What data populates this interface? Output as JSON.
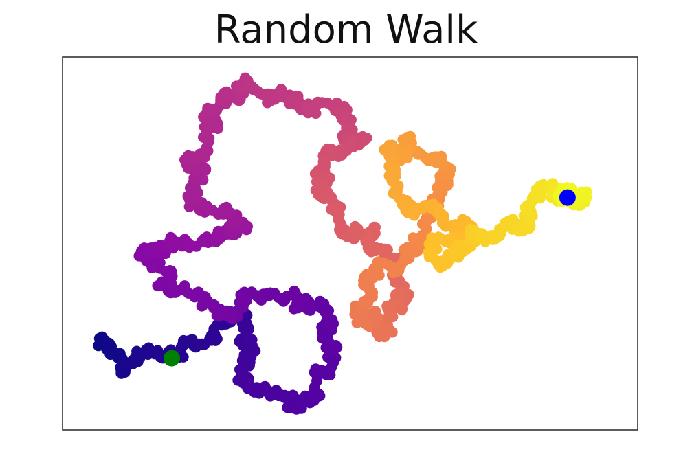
{
  "chart_data": {
    "type": "scatter",
    "title": "Random Walk",
    "xlabel": "",
    "ylabel": "",
    "axes_visible": false,
    "colormap": "plasma",
    "xlim": [
      0,
      100
    ],
    "ylim": [
      0,
      65
    ],
    "start_point": {
      "x": 19,
      "y": 12.5,
      "color": "#008000"
    },
    "end_point": {
      "x": 87.8,
      "y": 40.5,
      "color": "#0000ff"
    },
    "path_waypoints": [
      {
        "x": 6,
        "y": 15
      },
      {
        "x": 12,
        "y": 11
      },
      {
        "x": 22,
        "y": 14
      },
      {
        "x": 32,
        "y": 20
      },
      {
        "x": 31,
        "y": 11
      },
      {
        "x": 40,
        "y": 4
      },
      {
        "x": 47,
        "y": 12
      },
      {
        "x": 44,
        "y": 21
      },
      {
        "x": 36,
        "y": 24
      },
      {
        "x": 28,
        "y": 21
      },
      {
        "x": 18,
        "y": 26
      },
      {
        "x": 14,
        "y": 31
      },
      {
        "x": 24,
        "y": 33
      },
      {
        "x": 32,
        "y": 36
      },
      {
        "x": 24,
        "y": 40
      },
      {
        "x": 22,
        "y": 48
      },
      {
        "x": 26,
        "y": 56
      },
      {
        "x": 32,
        "y": 61
      },
      {
        "x": 40,
        "y": 57
      },
      {
        "x": 48,
        "y": 56
      },
      {
        "x": 52,
        "y": 50
      },
      {
        "x": 45,
        "y": 46
      },
      {
        "x": 47,
        "y": 38
      },
      {
        "x": 54,
        "y": 33
      },
      {
        "x": 60,
        "y": 24
      },
      {
        "x": 56,
        "y": 18
      },
      {
        "x": 51,
        "y": 20
      },
      {
        "x": 56,
        "y": 28
      },
      {
        "x": 63,
        "y": 37
      },
      {
        "x": 67,
        "y": 45
      },
      {
        "x": 60,
        "y": 50
      },
      {
        "x": 56,
        "y": 46
      },
      {
        "x": 62,
        "y": 38
      },
      {
        "x": 70,
        "y": 36
      },
      {
        "x": 66,
        "y": 30
      },
      {
        "x": 72,
        "y": 33
      },
      {
        "x": 80,
        "y": 35
      },
      {
        "x": 84,
        "y": 42
      },
      {
        "x": 90,
        "y": 40
      },
      {
        "x": 87.8,
        "y": 40.5
      }
    ]
  }
}
